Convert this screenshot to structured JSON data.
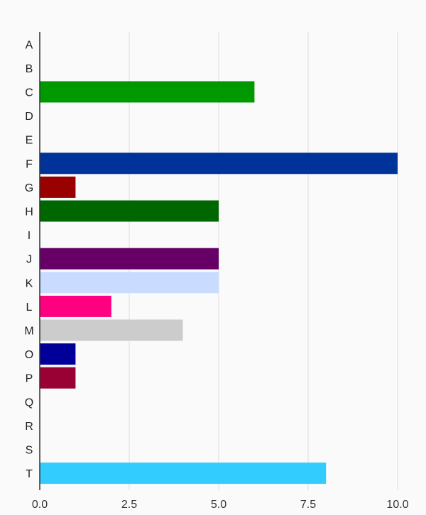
{
  "chart_data": {
    "type": "bar",
    "orientation": "horizontal",
    "categories": [
      "A",
      "B",
      "C",
      "D",
      "E",
      "F",
      "G",
      "H",
      "I",
      "J",
      "K",
      "L",
      "M",
      "O",
      "P",
      "Q",
      "R",
      "S",
      "T"
    ],
    "values": [
      0,
      0,
      6,
      0,
      0,
      10,
      1,
      5,
      0,
      5,
      5,
      2,
      4,
      1,
      1,
      0,
      0,
      0,
      8
    ],
    "colors": [
      "#cccccc",
      "#cccccc",
      "#009900",
      "#cccccc",
      "#cccccc",
      "#003399",
      "#990000",
      "#006600",
      "#cccccc",
      "#660066",
      "#c9dcff",
      "#ff0080",
      "#cccccc",
      "#000099",
      "#990033",
      "#cccccc",
      "#cccccc",
      "#cccccc",
      "#33ccff"
    ],
    "xlim": [
      0,
      10
    ],
    "x_ticks": [
      "0.0",
      "2.5",
      "5.0",
      "7.5",
      "10.0"
    ],
    "title": "",
    "xlabel": "",
    "ylabel": "",
    "grid": "vertical",
    "legend": "none",
    "background": "#fafafa",
    "gridline_color": "#dddddd",
    "axis_color": "#333333"
  }
}
